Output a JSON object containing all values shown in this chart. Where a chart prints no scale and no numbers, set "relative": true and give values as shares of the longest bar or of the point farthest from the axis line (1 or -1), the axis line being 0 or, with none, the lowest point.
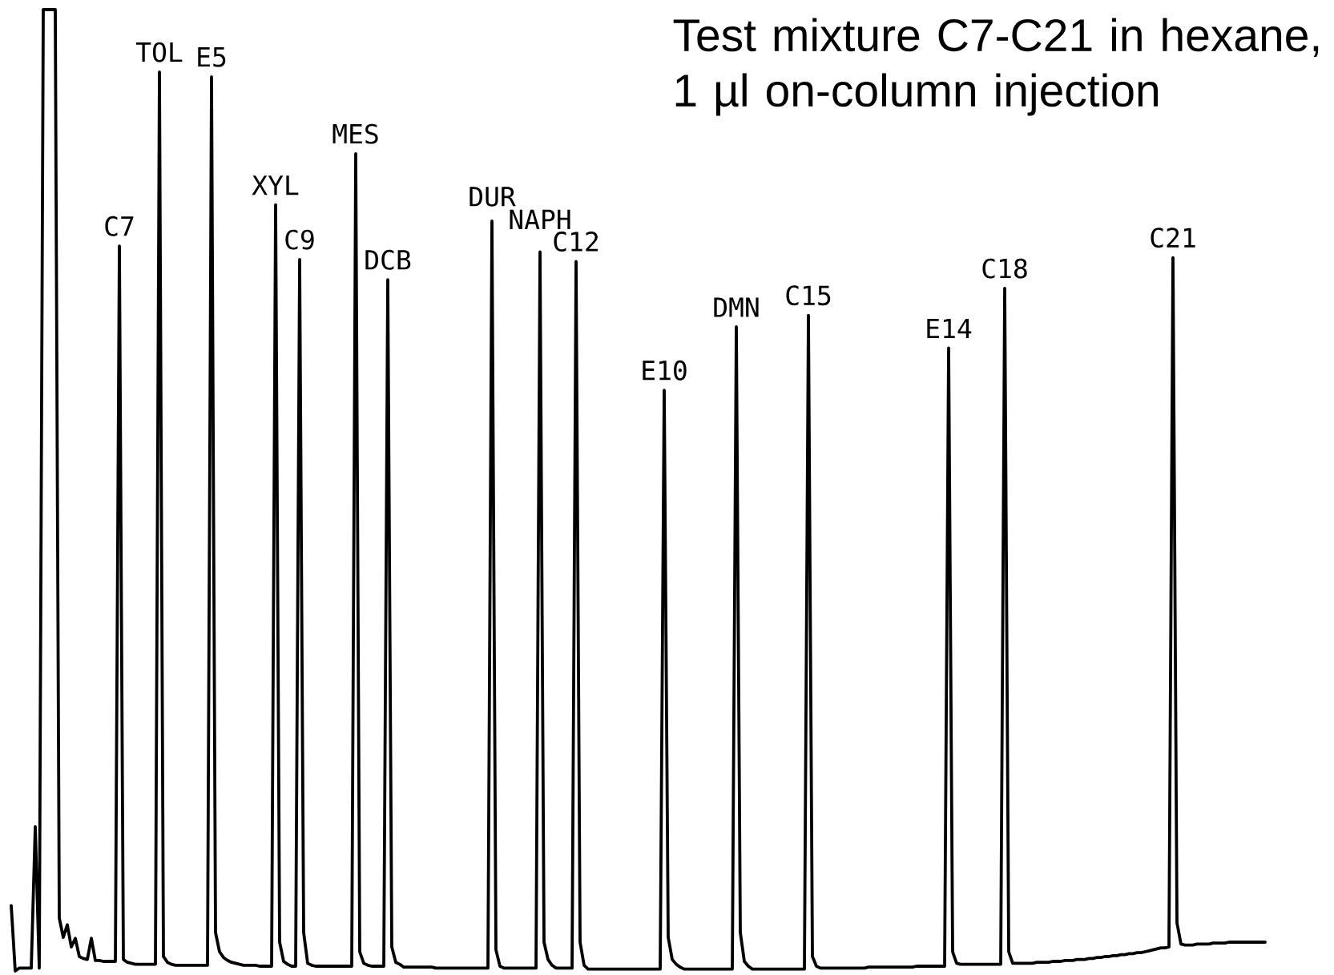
{
  "chart_data": {
    "type": "line",
    "title": "Test mixture C7-C21 in hexane, 1 µl on-column injection",
    "relative": true,
    "color": "#000000",
    "line_style": "solid",
    "annotations": [
      {
        "text": "C7",
        "y": 0.754
      },
      {
        "text": "TOL",
        "y": 0.935
      },
      {
        "text": "E5",
        "y": 0.93
      },
      {
        "text": "XYL",
        "y": 0.797
      },
      {
        "text": "C9",
        "y": 0.74
      },
      {
        "text": "MES",
        "y": 0.85
      },
      {
        "text": "DCB",
        "y": 0.719
      },
      {
        "text": "DUR",
        "y": 0.78
      },
      {
        "text": "NAPH",
        "y": 0.748
      },
      {
        "text": "C12",
        "y": 0.738
      },
      {
        "text": "E10",
        "y": 0.604
      },
      {
        "text": "DMN",
        "y": 0.67
      },
      {
        "text": "C15",
        "y": 0.682
      },
      {
        "text": "E14",
        "y": 0.648
      },
      {
        "text": "C18",
        "y": 0.71
      },
      {
        "text": "C21",
        "y": 0.742
      }
    ],
    "categories": [
      null,
      null,
      null,
      null,
      null,
      null,
      null,
      null,
      null,
      null,
      null,
      null,
      null,
      null,
      null,
      null,
      null,
      null,
      null,
      null,
      null,
      null,
      null,
      null,
      null,
      null,
      null,
      null,
      null,
      null,
      null,
      null,
      null,
      null,
      null,
      null,
      null,
      null,
      null,
      null,
      null,
      null,
      null,
      null,
      null,
      null,
      null,
      null,
      null,
      null,
      null,
      null,
      null,
      null,
      null,
      null,
      null,
      null,
      null,
      null,
      null,
      null,
      null,
      null,
      null,
      null,
      null,
      null,
      null,
      null,
      null,
      null,
      null,
      null,
      null,
      null,
      null,
      null,
      null,
      null,
      null,
      null,
      null,
      null,
      null,
      null,
      null,
      null,
      null,
      null,
      null,
      null,
      null,
      null,
      null,
      null,
      null,
      null,
      null,
      null,
      null,
      null,
      null,
      null,
      null,
      null,
      null,
      null,
      null,
      null,
      null,
      null,
      null,
      null,
      null,
      null,
      null,
      null,
      null,
      null,
      null,
      null,
      null,
      null,
      null,
      null,
      null,
      null,
      null,
      null,
      null,
      null,
      null,
      null,
      null,
      null,
      null,
      null,
      null,
      null,
      null,
      null,
      null,
      null,
      null,
      null,
      null,
      null,
      null,
      null,
      null,
      null,
      null,
      null,
      null,
      null,
      null,
      null,
      null,
      null,
      null,
      null,
      null,
      null,
      null,
      null,
      null,
      null,
      null,
      null,
      null,
      null,
      null,
      null,
      null,
      null,
      null,
      null,
      null,
      null,
      null,
      null,
      null,
      null,
      null,
      null,
      null,
      null,
      null,
      null,
      null,
      null,
      null,
      null,
      null,
      null,
      null,
      null,
      null,
      null,
      null,
      null,
      null,
      null,
      null,
      null,
      null,
      null,
      null,
      null,
      null,
      null,
      null,
      null,
      null,
      null,
      null,
      null,
      null,
      null,
      null,
      null,
      null,
      null,
      null,
      null,
      null,
      null,
      null,
      null,
      null,
      null,
      null,
      null,
      null,
      null,
      null,
      null,
      null,
      null,
      null,
      null,
      null,
      null,
      null,
      null,
      null,
      null,
      null,
      null,
      null,
      null,
      null,
      null,
      null,
      null,
      null,
      null,
      null,
      null,
      null,
      null,
      null,
      null,
      null,
      null,
      null,
      null,
      null,
      null,
      null,
      null,
      null,
      null,
      null,
      null,
      null,
      null,
      null,
      null,
      null,
      null,
      null,
      null,
      null,
      null,
      null,
      null,
      null,
      null,
      null,
      null,
      null,
      null,
      null,
      null,
      null,
      null,
      null,
      null,
      null,
      null,
      null,
      null,
      null,
      null,
      null,
      null,
      null,
      null,
      null,
      null,
      null,
      null
    ],
    "values": [
      0.068,
      0,
      0.003,
      0.003,
      0.003,
      0.003,
      0.15,
      0.003,
      1,
      1,
      1,
      1,
      0.055,
      0.035,
      0.048,
      0.025,
      0.034,
      0.015,
      0.013,
      0.012,
      0.034,
      0.011,
      0.011,
      0.01,
      0.01,
      0.01,
      0.01,
      0.754,
      0.012,
      0.009,
      0.008,
      0.007,
      0.007,
      0.007,
      0.007,
      0.007,
      0.007,
      0.935,
      0.015,
      0.009,
      0.007,
      0.006,
      0.006,
      0.006,
      0.006,
      0.006,
      0.006,
      0.006,
      0.006,
      0.006,
      0.93,
      0.04,
      0.02,
      0.014,
      0.011,
      0.009,
      0.008,
      0.007,
      0.006,
      0.006,
      0.006,
      0.006,
      0.005,
      0.005,
      0.005,
      0.005,
      0.797,
      0.03,
      0.01,
      0.007,
      0.005,
      0.005,
      0.74,
      0.04,
      0.008,
      0.006,
      0.005,
      0.005,
      0.005,
      0.005,
      0.005,
      0.005,
      0.005,
      0.005,
      0.005,
      0.005,
      0.85,
      0.02,
      0.008,
      0.006,
      0.005,
      0.005,
      0.005,
      0.005,
      0.719,
      0.025,
      0.009,
      0.007,
      0.004,
      0.004,
      0.004,
      0.004,
      0.004,
      0.004,
      0.004,
      0.004,
      0.003,
      0.003,
      0.003,
      0.003,
      0.003,
      0.003,
      0.003,
      0.003,
      0.003,
      0.003,
      0.003,
      0.003,
      0.003,
      0.003,
      0.78,
      0.022,
      0.005,
      0.003,
      0.003,
      0.003,
      0.003,
      0.003,
      0.003,
      0.003,
      0.003,
      0.003,
      0.748,
      0.03,
      0.012,
      0.006,
      0.003,
      0.003,
      0.003,
      0.003,
      0.003,
      0.738,
      0.03,
      0.006,
      0.002,
      0.002,
      0.002,
      0.002,
      0.002,
      0.002,
      0.002,
      0.002,
      0.002,
      0.002,
      0.002,
      0.002,
      0.002,
      0.002,
      0.002,
      0.002,
      0.002,
      0.002,
      0.002,
      0.604,
      0.035,
      0.012,
      0.007,
      0.004,
      0.002,
      0.002,
      0.002,
      0.002,
      0.002,
      0.002,
      0.002,
      0.002,
      0.002,
      0.002,
      0.002,
      0.002,
      0.002,
      0.67,
      0.04,
      0.01,
      0.005,
      0.002,
      0.002,
      0.002,
      0.002,
      0.002,
      0.002,
      0.002,
      0.002,
      0.002,
      0.002,
      0.002,
      0.002,
      0.002,
      0.002,
      0.682,
      0.015,
      0.005,
      0.003,
      0.003,
      0.003,
      0.003,
      0.003,
      0.003,
      0.003,
      0.003,
      0.003,
      0.003,
      0.003,
      0.003,
      0.004,
      0.004,
      0.004,
      0.004,
      0.004,
      0.004,
      0.004,
      0.004,
      0.004,
      0.004,
      0.004,
      0.004,
      0.005,
      0.005,
      0.005,
      0.005,
      0.005,
      0.005,
      0.005,
      0.005,
      0.648,
      0.02,
      0.008,
      0.007,
      0.007,
      0.007,
      0.007,
      0.007,
      0.007,
      0.007,
      0.007,
      0.007,
      0.007,
      0.007,
      0.71,
      0.02,
      0.008,
      0.008,
      0.008,
      0.008,
      0.008,
      0.008,
      0.009,
      0.009,
      0.009,
      0.009,
      0.01,
      0.01,
      0.01,
      0.011,
      0.011,
      0.011,
      0.012,
      0.012,
      0.012,
      0.013,
      0.013,
      0.014,
      0.014,
      0.015,
      0.015,
      0.016,
      0.016,
      0.017,
      0.017,
      0.018,
      0.018,
      0.019,
      0.019,
      0.02,
      0.021,
      0.022,
      0.023,
      0.024,
      0.024,
      0.025,
      0.742,
      0.05,
      0.028,
      0.027,
      0.027,
      0.027,
      0.028,
      0.028,
      0.028,
      0.028,
      0.029,
      0.029,
      0.029,
      0.029,
      0.03,
      0.03,
      0.03,
      0.03,
      0.03,
      0.03,
      0.03,
      0.03,
      0.03,
      0.03
    ]
  }
}
